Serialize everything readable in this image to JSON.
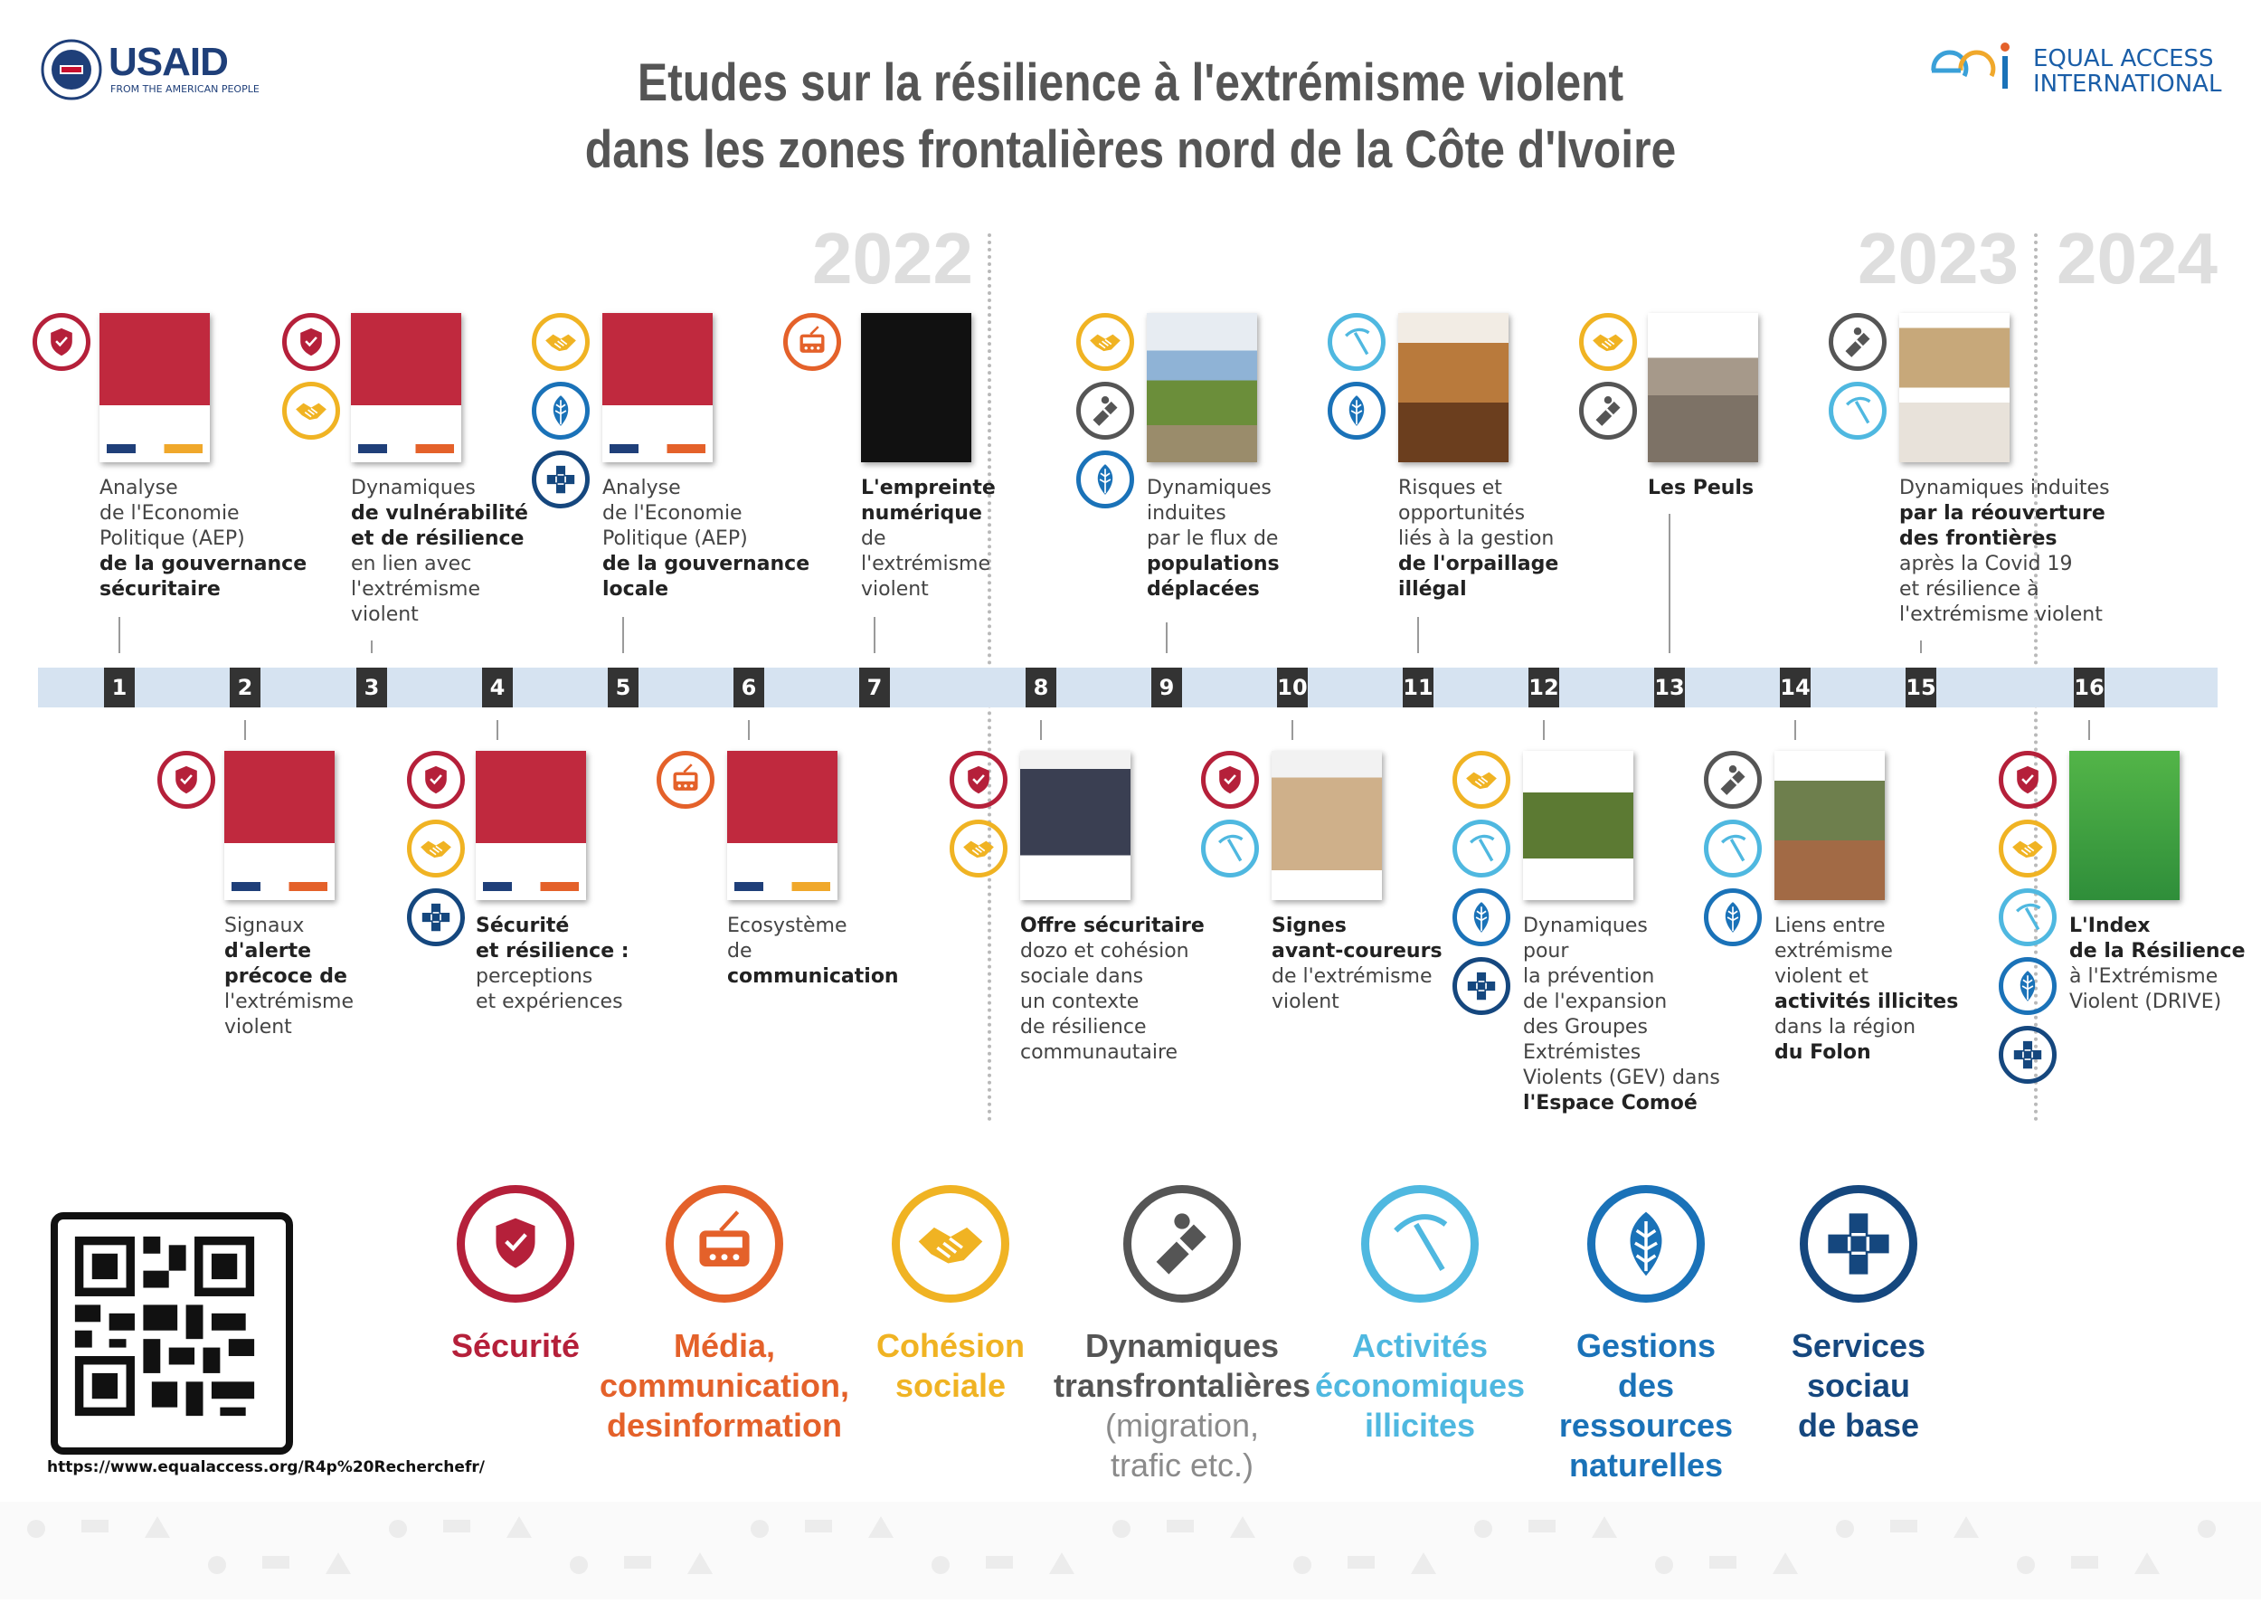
{
  "header": {
    "usaid_name": "USAID",
    "usaid_tagline": "FROM THE AMERICAN PEOPLE",
    "eai_name_line1": "EQUAL ACCESS",
    "eai_name_line2": "INTERNATIONAL",
    "title_line1": "Etudes sur la résilience à l'extrémisme violent",
    "title_line2": "dans les zones frontalières nord de la Côte d'Ivoire"
  },
  "years": {
    "y2022": "2022",
    "y2023": "2023",
    "y2024": "2024"
  },
  "studies": {
    "s1": {
      "num": "1",
      "lines": [
        "Analyse",
        "de l'Economie",
        "Politique (AEP)",
        "de la gouvernance",
        "sécuritaire"
      ]
    },
    "s2": {
      "num": "2",
      "lines": [
        "Signaux",
        "d'alerte",
        "précoce de",
        "l'extrémisme",
        "violent"
      ]
    },
    "s3": {
      "num": "3",
      "lines": [
        "Dynamiques",
        "de vulnérabilité",
        "et de résilience",
        "en lien avec",
        "l'extrémisme",
        "violent"
      ]
    },
    "s4": {
      "num": "4",
      "lines": [
        "Sécurité",
        "et résilience :",
        "perceptions",
        "et expériences"
      ]
    },
    "s5": {
      "num": "5",
      "lines": [
        "Analyse",
        "de l'Economie",
        "Politique (AEP)",
        "de la gouvernance",
        "locale"
      ]
    },
    "s6": {
      "num": "6",
      "lines": [
        "Ecosystème",
        "de",
        "communication"
      ]
    },
    "s7": {
      "num": "7",
      "lines": [
        "L'empreinte",
        "numérique",
        "de",
        "l'extrémisme",
        "violent"
      ]
    },
    "s8": {
      "num": "8",
      "lines": [
        "Offre sécuritaire",
        "dozo et cohésion",
        "sociale dans",
        "un contexte",
        "de résilience",
        "communautaire"
      ]
    },
    "s9": {
      "num": "9",
      "lines": [
        "Dynamiques",
        "induites",
        "par le flux de",
        "populations",
        "déplacées"
      ]
    },
    "s10": {
      "num": "10",
      "lines": [
        "Signes",
        "avant-coureurs",
        "de l'extrémisme",
        "violent"
      ]
    },
    "s11": {
      "num": "11",
      "lines": [
        "Risques et",
        "opportunités",
        "liés à la gestion",
        "de l'orpaillage",
        "illégal"
      ]
    },
    "s12": {
      "num": "12",
      "lines": [
        "Dynamiques",
        "pour",
        "la prévention",
        "de l'expansion",
        "des Groupes",
        "Extrémistes",
        "Violents (GEV) dans",
        "l'Espace Comoé"
      ]
    },
    "s13": {
      "num": "13",
      "lines": [
        "Les Peuls"
      ]
    },
    "s14": {
      "num": "14",
      "lines": [
        "Liens entre",
        "extrémisme",
        "violent et",
        "activités illicites",
        "dans la région",
        "du Folon"
      ]
    },
    "s15": {
      "num": "15",
      "lines": [
        "Dynamiques induites",
        "par la réouverture",
        "des frontières",
        "après la Covid 19",
        "et résilience à",
        "l'extrémisme violent"
      ]
    },
    "s16": {
      "num": "16",
      "lines": [
        "L'Index",
        "de la Résilience",
        "à l'Extrémisme",
        "Violent (DRIVE)"
      ]
    }
  },
  "legend": {
    "securite": "Sécurité",
    "media_l1": "Média,",
    "media_l2": "communication,",
    "media_l3": "desinformation",
    "cohesion_l1": "Cohésion",
    "cohesion_l2": "sociale",
    "dyn_l1": "Dynamiques",
    "dyn_l2": "transfrontalières",
    "dyn_l3": "(migration,",
    "dyn_l4": "trafic etc.)",
    "illicit_l1": "Activités",
    "illicit_l2": "économiques",
    "illicit_l3": "illicites",
    "nat_l1": "Gestions",
    "nat_l2": "des",
    "nat_l3": "ressources",
    "nat_l4": "naturelles",
    "serv_l1": "Services",
    "serv_l2": "sociau",
    "serv_l3": "de base"
  },
  "qr_url": "https://www.equalaccess.org/R4p%20Recherchefr/",
  "colors": {
    "securite": "#b5203a",
    "media": "#e4612a",
    "cohesion": "#f0b323",
    "dynamiques": "#555555",
    "illicites": "#4fb8e0",
    "naturelles": "#1a72b8",
    "services": "#15477e",
    "band": "#d6e3f1"
  }
}
